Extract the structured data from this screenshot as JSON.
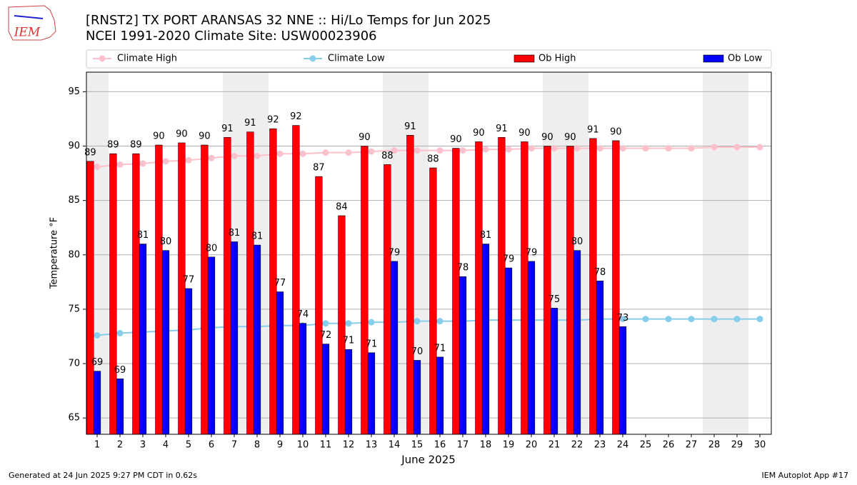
{
  "chart_data": {
    "type": "bar",
    "title": "[RNST2] TX PORT ARANSAS 32 NNE :: Hi/Lo Temps for Jun 2025",
    "subtitle": "NCEI 1991-2020 Climate Site: USW00023906",
    "logo_text": "IEM",
    "x_label": "June 2025",
    "y_label": "Temperature °F",
    "footer_left": "Generated at 24 Jun 2025 9:27 PM CDT in 0.62s",
    "footer_right": "IEM Autoplot App #17",
    "categories": [
      "1",
      "2",
      "3",
      "4",
      "5",
      "6",
      "7",
      "8",
      "9",
      "10",
      "11",
      "12",
      "13",
      "14",
      "15",
      "16",
      "17",
      "18",
      "19",
      "20",
      "21",
      "22",
      "23",
      "24",
      "25",
      "26",
      "27",
      "28",
      "29",
      "30"
    ],
    "ylim": [
      63.5,
      96.8
    ],
    "yticks": [
      65,
      70,
      75,
      80,
      85,
      90,
      95
    ],
    "grid": true,
    "series": [
      {
        "name": "Climate High",
        "type": "line",
        "color": "#ffc0cb",
        "values": [
          88.1,
          88.3,
          88.4,
          88.6,
          88.7,
          88.9,
          89.1,
          89.1,
          89.3,
          89.3,
          89.4,
          89.4,
          89.5,
          89.6,
          89.6,
          89.6,
          89.6,
          89.7,
          89.7,
          89.8,
          89.8,
          89.8,
          89.8,
          89.8,
          89.8,
          89.8,
          89.8,
          89.9,
          89.9,
          89.9
        ]
      },
      {
        "name": "Climate Low",
        "type": "line",
        "color": "#87ceeb",
        "values": [
          72.6,
          72.8,
          72.9,
          73.0,
          73.1,
          73.3,
          73.4,
          73.4,
          73.5,
          73.5,
          73.7,
          73.7,
          73.8,
          73.8,
          73.9,
          73.9,
          73.9,
          74.0,
          74.0,
          74.0,
          74.0,
          74.0,
          74.1,
          74.1,
          74.1,
          74.1,
          74.1,
          74.1,
          74.1,
          74.1
        ]
      },
      {
        "name": "Ob High",
        "type": "bar",
        "color": "#ff0000",
        "values": [
          88.6,
          89.3,
          89.3,
          90.1,
          90.3,
          90.1,
          90.8,
          91.3,
          91.6,
          91.9,
          87.2,
          83.6,
          90.0,
          88.3,
          91.0,
          88.0,
          89.8,
          90.4,
          90.8,
          90.4,
          90.0,
          90.0,
          90.7,
          90.5,
          null,
          null,
          null,
          null,
          null,
          null
        ],
        "value_labels": [
          "89",
          "89",
          "89",
          "90",
          "90",
          "90",
          "91",
          "91",
          "92",
          "92",
          "87",
          "84",
          "90",
          "88",
          "91",
          "88",
          "90",
          "90",
          "91",
          "90",
          "90",
          "90",
          "91",
          "90",
          null,
          null,
          null,
          null,
          null,
          null
        ]
      },
      {
        "name": "Ob Low",
        "type": "bar",
        "color": "#0000ff",
        "values": [
          69.3,
          68.6,
          81.0,
          80.4,
          76.9,
          79.8,
          81.2,
          80.9,
          76.6,
          73.7,
          71.8,
          71.3,
          71.0,
          79.4,
          70.3,
          70.6,
          78.0,
          81.0,
          78.8,
          79.4,
          75.1,
          80.4,
          77.6,
          73.4,
          null,
          null,
          null,
          null,
          null,
          null
        ],
        "value_labels": [
          "69",
          "69",
          "81",
          "80",
          "77",
          "80",
          "81",
          "81",
          "77",
          "74",
          "72",
          "71",
          "71",
          "79",
          "70",
          "71",
          "78",
          "81",
          "79",
          "79",
          "75",
          "80",
          "78",
          "73",
          null,
          null,
          null,
          null,
          null,
          null
        ]
      }
    ]
  }
}
